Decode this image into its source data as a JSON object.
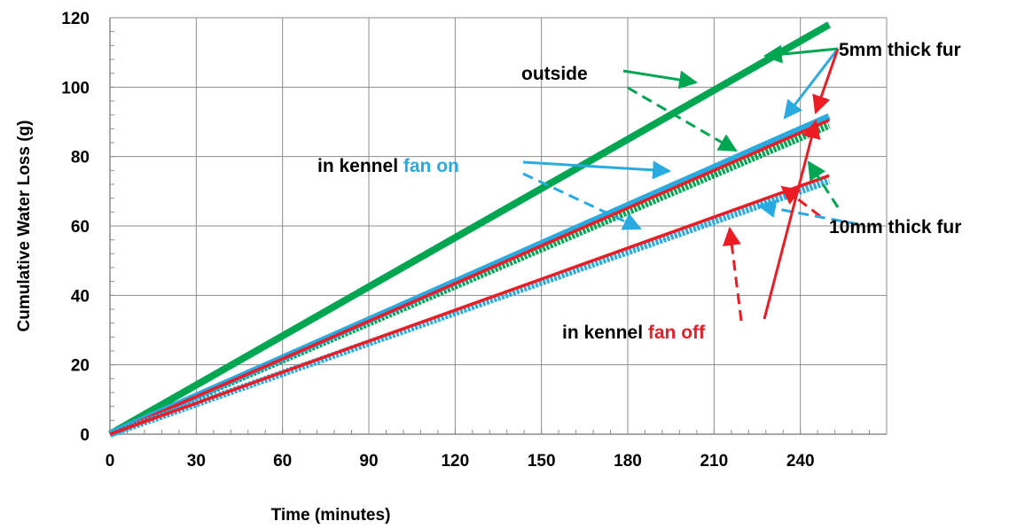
{
  "chart_data": {
    "type": "line",
    "xlabel": "Time  (minutes)",
    "ylabel": "Cumulative Water Loss (g)",
    "xlim": [
      0,
      270
    ],
    "ylim": [
      0,
      120
    ],
    "x_ticks": [
      0,
      30,
      60,
      90,
      120,
      150,
      180,
      210,
      240
    ],
    "y_ticks": [
      0,
      20,
      40,
      60,
      80,
      100,
      120
    ],
    "grid": true,
    "series": [
      {
        "color": "#00a651",
        "x": [
          0,
          250
        ],
        "y": [
          0,
          118
        ],
        "thick": true
      },
      {
        "color": "#00a651",
        "x": [
          0,
          250
        ],
        "y": [
          0,
          89
        ],
        "thick": true,
        "dashed": true
      },
      {
        "color": "#29abe2",
        "x": [
          0,
          250
        ],
        "y": [
          0,
          91.5
        ],
        "thick": true
      },
      {
        "color": "#ed1c24",
        "x": [
          0,
          250
        ],
        "y": [
          0,
          90.5
        ],
        "thick": false
      },
      {
        "color": "#29abe2",
        "x": [
          0,
          250
        ],
        "y": [
          0,
          73
        ],
        "thick": true,
        "dashed": true
      },
      {
        "color": "#ed1c24",
        "x": [
          0,
          250
        ],
        "y": [
          0,
          74.5
        ],
        "thick": false
      }
    ],
    "annotations": {
      "outside": {
        "text": "outside",
        "color": "#000000"
      },
      "fan_on": {
        "prefix": "in kennel ",
        "suffix": "fan on",
        "prefix_color": "#000000",
        "suffix_color": "#29abe2"
      },
      "fan_off": {
        "prefix": "in kennel ",
        "suffix": "fan off",
        "prefix_color": "#000000",
        "suffix_color": "#ed1c24"
      },
      "fur5": {
        "text": "5mm thick fur",
        "color": "#000000"
      },
      "fur10": {
        "text": "10mm thick fur",
        "color": "#000000"
      }
    }
  }
}
